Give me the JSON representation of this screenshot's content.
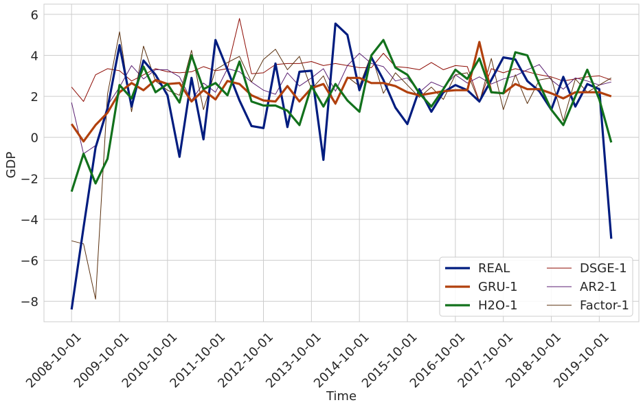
{
  "chart_data": {
    "type": "line",
    "title": "",
    "xlabel": "Time",
    "ylabel": "GDP",
    "ylim": [
      -9.0,
      6.5
    ],
    "yticks": [
      -8,
      -6,
      -4,
      -2,
      0,
      2,
      4,
      6
    ],
    "ytick_labels": [
      "−8",
      "−6",
      "−4",
      "−2",
      "0",
      "2",
      "4",
      "6"
    ],
    "x_index_range": [
      -2.3,
      47.3
    ],
    "xticks": [
      0,
      4,
      8,
      12,
      16,
      20,
      24,
      28,
      32,
      36,
      40,
      44
    ],
    "xtick_labels": [
      "2008-10-01",
      "2009-10-01",
      "2010-10-01",
      "2011-10-01",
      "2012-10-01",
      "2013-10-01",
      "2014-10-01",
      "2015-10-01",
      "2016-10-01",
      "2017-10-01",
      "2018-10-01",
      "2019-10-01"
    ],
    "grid": true,
    "legend": {
      "location": "lower-right",
      "columns": 2
    },
    "series": [
      {
        "name": "REAL",
        "color": "#001c7f",
        "width": 3.2,
        "values": [
          -8.4,
          -4.4,
          -0.5,
          1.4,
          4.5,
          1.5,
          3.75,
          3.05,
          2.05,
          -0.95,
          2.9,
          -0.1,
          4.75,
          3.3,
          1.8,
          0.55,
          0.45,
          3.6,
          0.5,
          3.2,
          3.25,
          -1.1,
          5.55,
          5.0,
          2.3,
          3.9,
          2.8,
          1.45,
          0.65,
          2.35,
          1.25,
          2.2,
          2.55,
          2.3,
          1.75,
          2.8,
          3.9,
          3.8,
          2.75,
          2.25,
          1.35,
          2.95,
          1.5,
          2.6,
          2.35,
          -4.95
        ]
      },
      {
        "name": "GRU-1",
        "color": "#b1400d",
        "width": 3.2,
        "values": [
          0.65,
          -0.2,
          0.6,
          1.2,
          2.2,
          2.65,
          2.3,
          2.8,
          2.6,
          2.65,
          1.75,
          2.3,
          1.85,
          2.75,
          2.6,
          2.05,
          1.8,
          1.75,
          2.5,
          1.75,
          2.4,
          2.6,
          1.65,
          2.9,
          2.9,
          2.65,
          2.65,
          2.5,
          2.2,
          2.05,
          2.15,
          2.25,
          2.3,
          2.3,
          4.65,
          2.2,
          2.15,
          2.6,
          2.35,
          2.35,
          2.15,
          1.9,
          2.2,
          2.2,
          2.2,
          2.0
        ]
      },
      {
        "name": "H2O-1",
        "color": "#12711c",
        "width": 3.2,
        "values": [
          -2.65,
          -0.8,
          -2.25,
          -1.05,
          2.55,
          1.9,
          3.45,
          2.2,
          2.6,
          1.7,
          4.0,
          2.35,
          2.65,
          2.05,
          3.7,
          1.75,
          1.55,
          1.55,
          1.3,
          0.6,
          2.5,
          1.5,
          2.6,
          1.8,
          1.25,
          4.0,
          4.75,
          3.4,
          3.05,
          2.15,
          1.5,
          2.35,
          3.3,
          2.85,
          3.85,
          2.2,
          2.15,
          4.15,
          4.0,
          2.6,
          1.35,
          0.6,
          2.0,
          3.3,
          1.85,
          -0.25
        ]
      },
      {
        "name": "DSGE-1",
        "color": "#8c0800",
        "width": 1.0,
        "values": [
          2.45,
          1.75,
          3.05,
          3.35,
          3.25,
          2.75,
          3.05,
          3.35,
          3.2,
          3.15,
          3.2,
          3.45,
          3.25,
          3.35,
          5.8,
          3.1,
          3.15,
          3.55,
          3.6,
          3.6,
          3.7,
          3.5,
          3.6,
          3.5,
          3.4,
          3.4,
          4.1,
          3.45,
          3.4,
          3.3,
          3.65,
          3.3,
          3.5,
          3.45,
          1.75,
          3.35,
          3.15,
          3.35,
          3.2,
          3.05,
          2.95,
          2.75,
          2.85,
          2.95,
          3.0,
          2.8
        ]
      },
      {
        "name": "AR2-1",
        "color": "#591e71",
        "width": 1.0,
        "values": [
          1.7,
          -0.8,
          -0.4,
          1.55,
          2.45,
          3.5,
          2.85,
          3.3,
          3.3,
          2.95,
          1.8,
          2.65,
          2.2,
          3.35,
          3.2,
          2.7,
          2.3,
          2.1,
          3.15,
          2.5,
          2.9,
          3.35,
          2.25,
          3.5,
          4.1,
          3.6,
          3.45,
          2.75,
          2.9,
          2.2,
          2.7,
          2.45,
          3.05,
          2.65,
          2.95,
          2.6,
          2.85,
          3.0,
          3.3,
          3.55,
          2.8,
          2.35,
          2.9,
          2.75,
          2.55,
          2.7
        ]
      },
      {
        "name": "Factor-1",
        "color": "#592f0d",
        "width": 1.0,
        "values": [
          -5.05,
          -5.2,
          -7.9,
          2.1,
          5.15,
          1.25,
          4.45,
          2.75,
          2.3,
          2.05,
          4.25,
          1.35,
          3.3,
          3.65,
          3.95,
          2.7,
          3.8,
          4.3,
          3.3,
          3.95,
          2.35,
          3.0,
          1.6,
          2.95,
          2.5,
          4.05,
          2.15,
          3.15,
          2.55,
          1.95,
          2.45,
          1.85,
          3.05,
          3.15,
          1.7,
          3.85,
          1.35,
          3.05,
          1.65,
          2.8,
          2.9,
          0.8,
          2.85,
          2.2,
          2.55,
          2.9
        ]
      }
    ]
  }
}
